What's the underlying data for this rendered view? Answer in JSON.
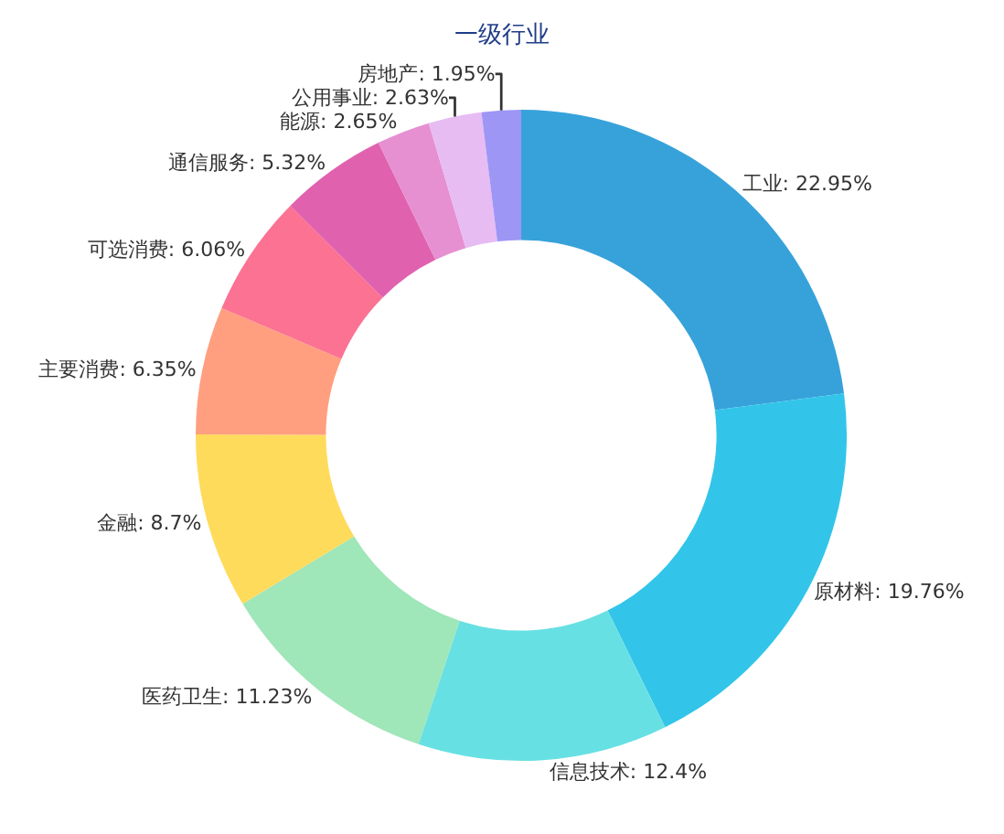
{
  "chart_data": {
    "type": "donut",
    "title": "一级行业",
    "categories": [
      "工业",
      "原材料",
      "信息技术",
      "医药卫生",
      "金融",
      "主要消费",
      "可选消费",
      "通信服务",
      "能源",
      "公用事业",
      "房地产"
    ],
    "values": [
      22.95,
      19.76,
      12.4,
      11.23,
      8.7,
      6.35,
      6.06,
      5.32,
      2.65,
      2.63,
      1.95
    ],
    "value_labels": [
      "22.95%",
      "19.76%",
      "12.4%",
      "11.23%",
      "8.7%",
      "6.35%",
      "6.06%",
      "5.32%",
      "2.65%",
      "2.63%",
      "1.95%"
    ],
    "colors": [
      "#37a2da",
      "#32c5e9",
      "#67e0e3",
      "#9fe6b8",
      "#ffdb5c",
      "#ff9f7f",
      "#fb7293",
      "#e062ae",
      "#e690d1",
      "#e7bcf3",
      "#9d96f5"
    ],
    "legend": false
  }
}
